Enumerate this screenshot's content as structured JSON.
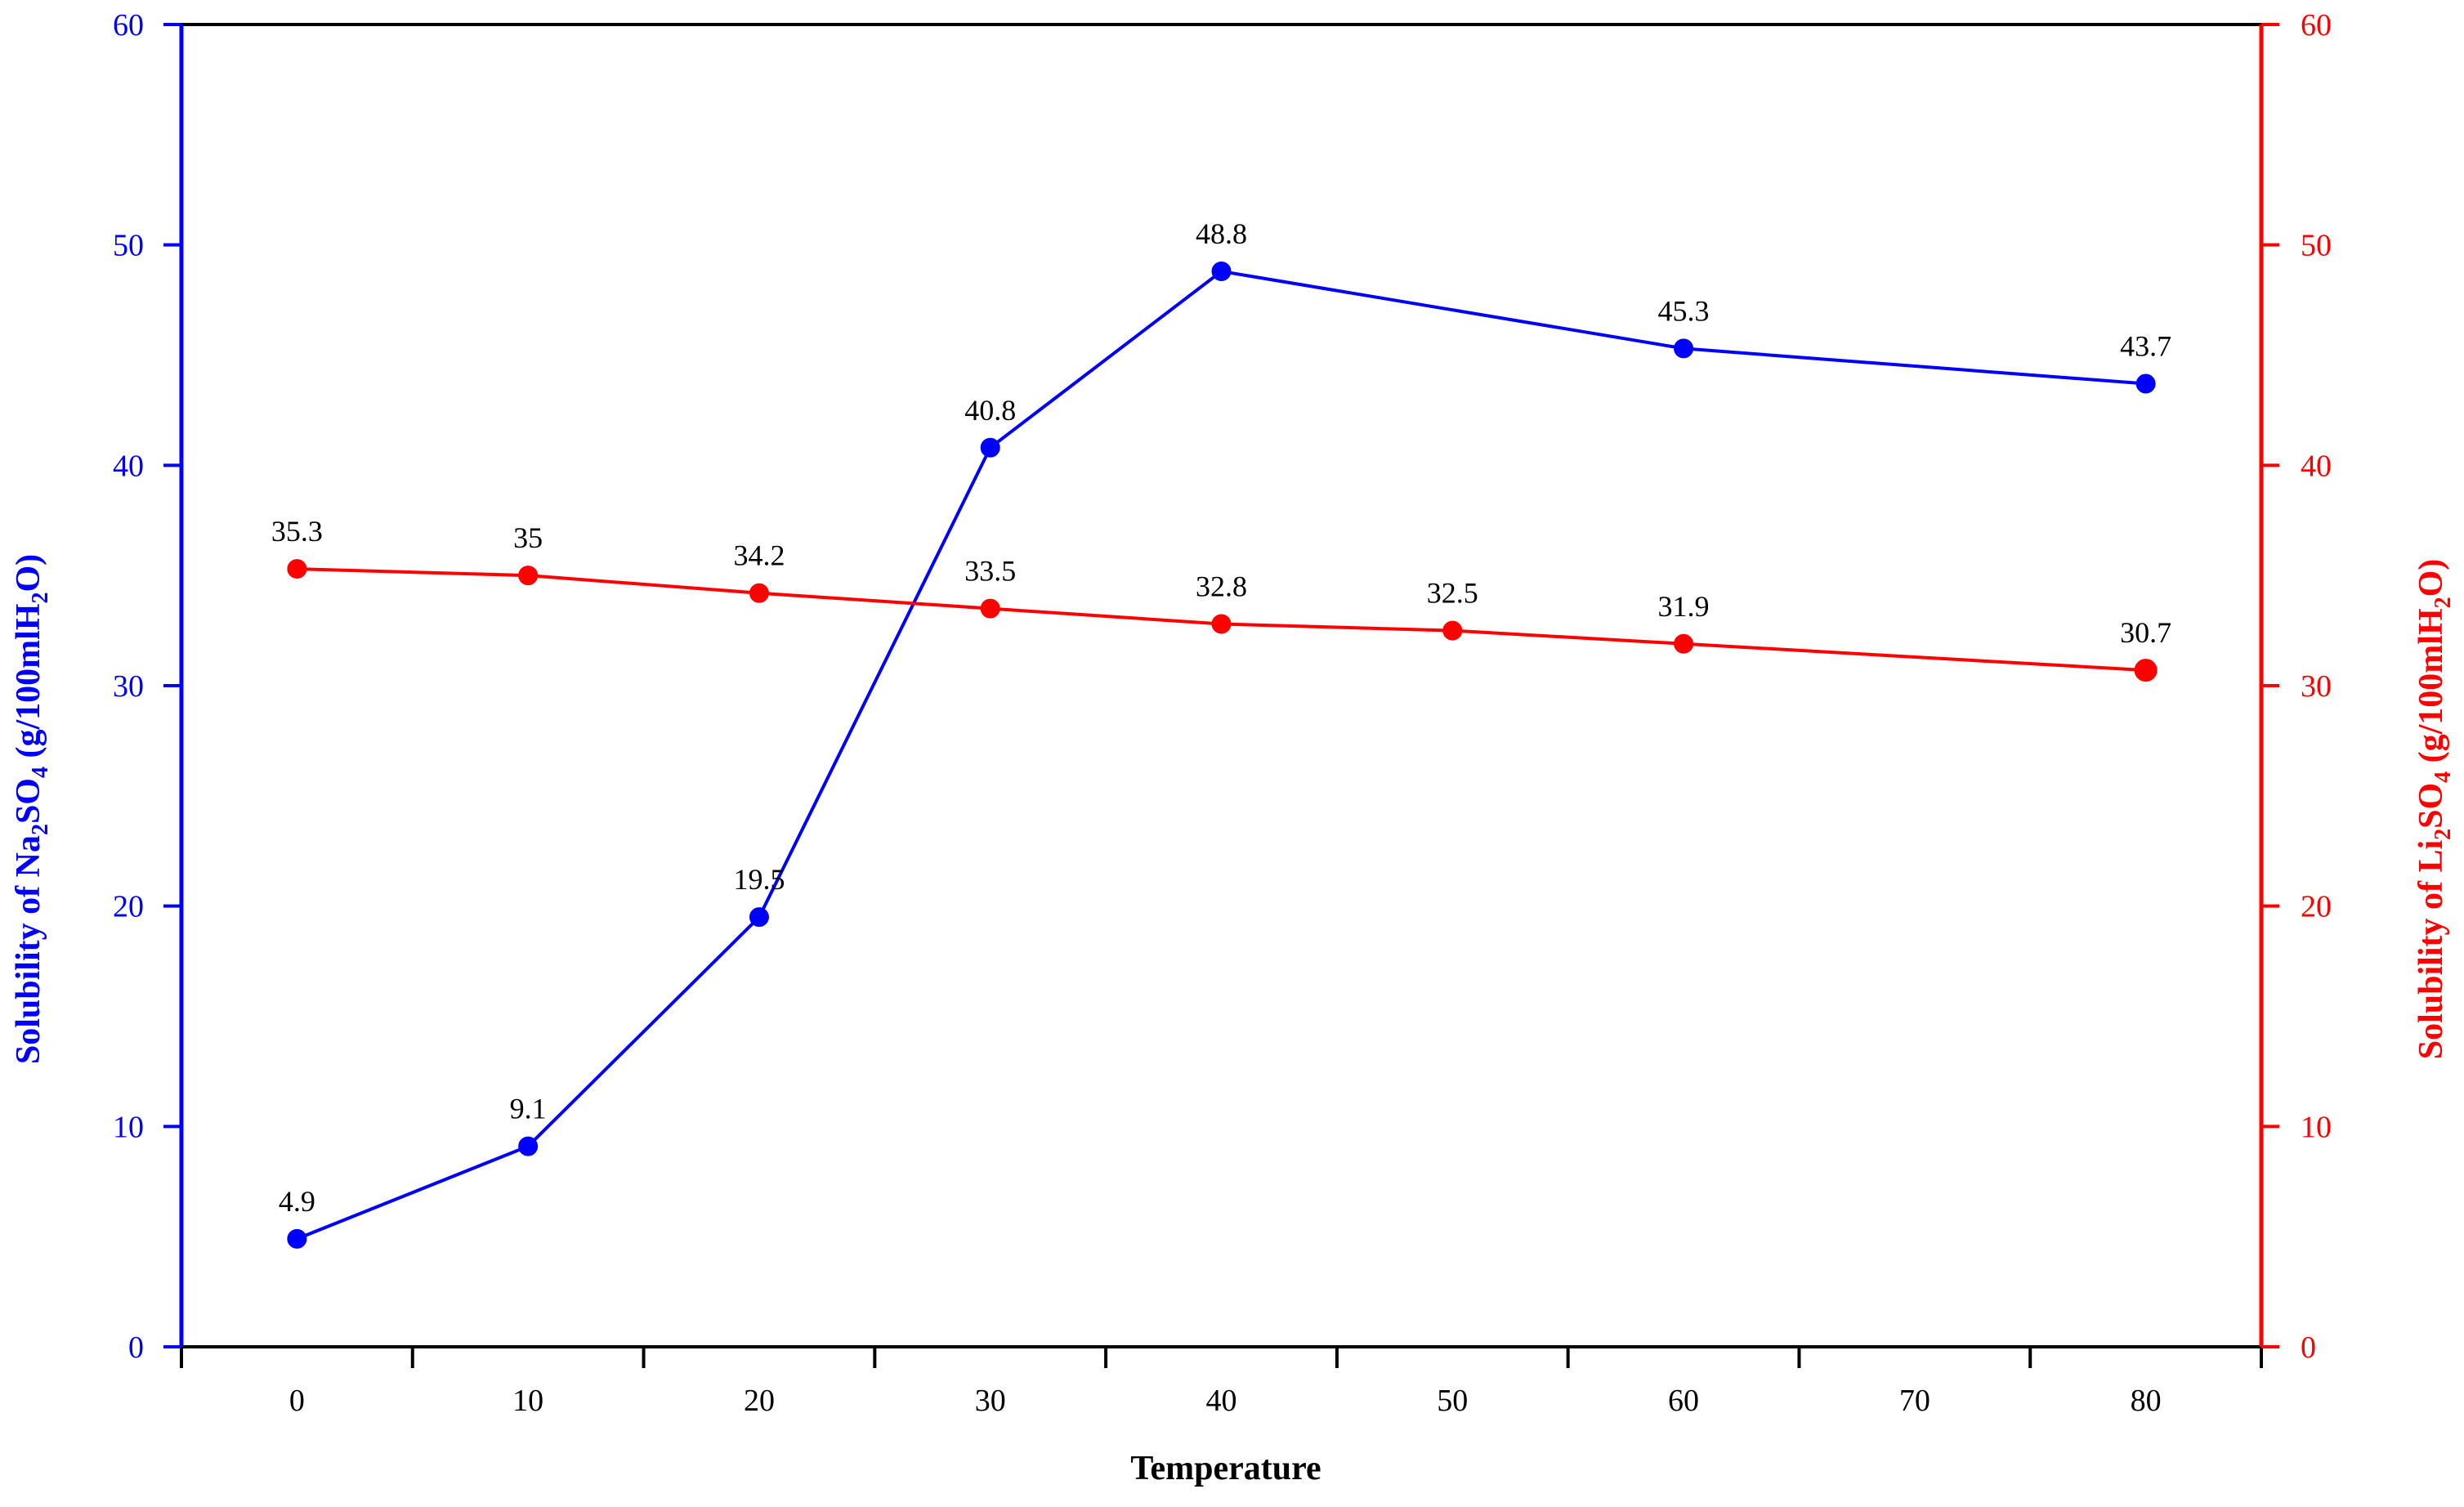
{
  "chart_data": {
    "type": "line",
    "xlabel": "Temperature",
    "x_ticks": [
      0,
      10,
      20,
      30,
      40,
      50,
      60,
      70,
      80
    ],
    "xlim": [
      -5,
      85
    ],
    "y_ticks": [
      0,
      10,
      20,
      30,
      40,
      50,
      60
    ],
    "ylim": [
      0,
      60
    ],
    "y2_ticks": [
      0,
      10,
      20,
      30,
      40,
      50,
      60
    ],
    "y2lim": [
      0,
      60
    ],
    "ylabel": {
      "pre": "Solubility of Na",
      "sub1": "2",
      "mid": "SO",
      "sub2": "4",
      "post": " (g/100mlH",
      "sub3": "2",
      "end": "O)"
    },
    "y2label": {
      "pre": "Solubility of Li",
      "sub1": "2",
      "mid": "SO",
      "sub2": "4",
      "post": " (g/100mlH",
      "sub3": "2",
      "end": "O)"
    },
    "grid": false,
    "legend": "none",
    "colors": {
      "left_axis": "#0000ff",
      "right_axis": "#ff0000",
      "na_series": "#0000ff",
      "li_series": "#ff0000",
      "top_axis": "#000000",
      "bottom_axis": "#000000"
    },
    "series": [
      {
        "axis": "left",
        "color": "#0000ff",
        "x": [
          0,
          10,
          20,
          30,
          40,
          60,
          80
        ],
        "values": [
          4.9,
          9.1,
          19.5,
          40.8,
          48.8,
          45.3,
          43.7
        ],
        "labels": [
          "4.9",
          "9.1",
          "19.5",
          "40.8",
          "48.8",
          "45.3",
          "43.7"
        ]
      },
      {
        "axis": "right",
        "color": "#ff0000",
        "x": [
          0,
          10,
          20,
          30,
          40,
          50,
          60,
          80
        ],
        "values": [
          35.3,
          35,
          34.2,
          33.5,
          32.8,
          32.5,
          31.9,
          30.7
        ],
        "labels": [
          "35.3",
          "35",
          "34.2",
          "33.5",
          "32.8",
          "32.5",
          "31.9",
          "30.7"
        ]
      }
    ]
  }
}
